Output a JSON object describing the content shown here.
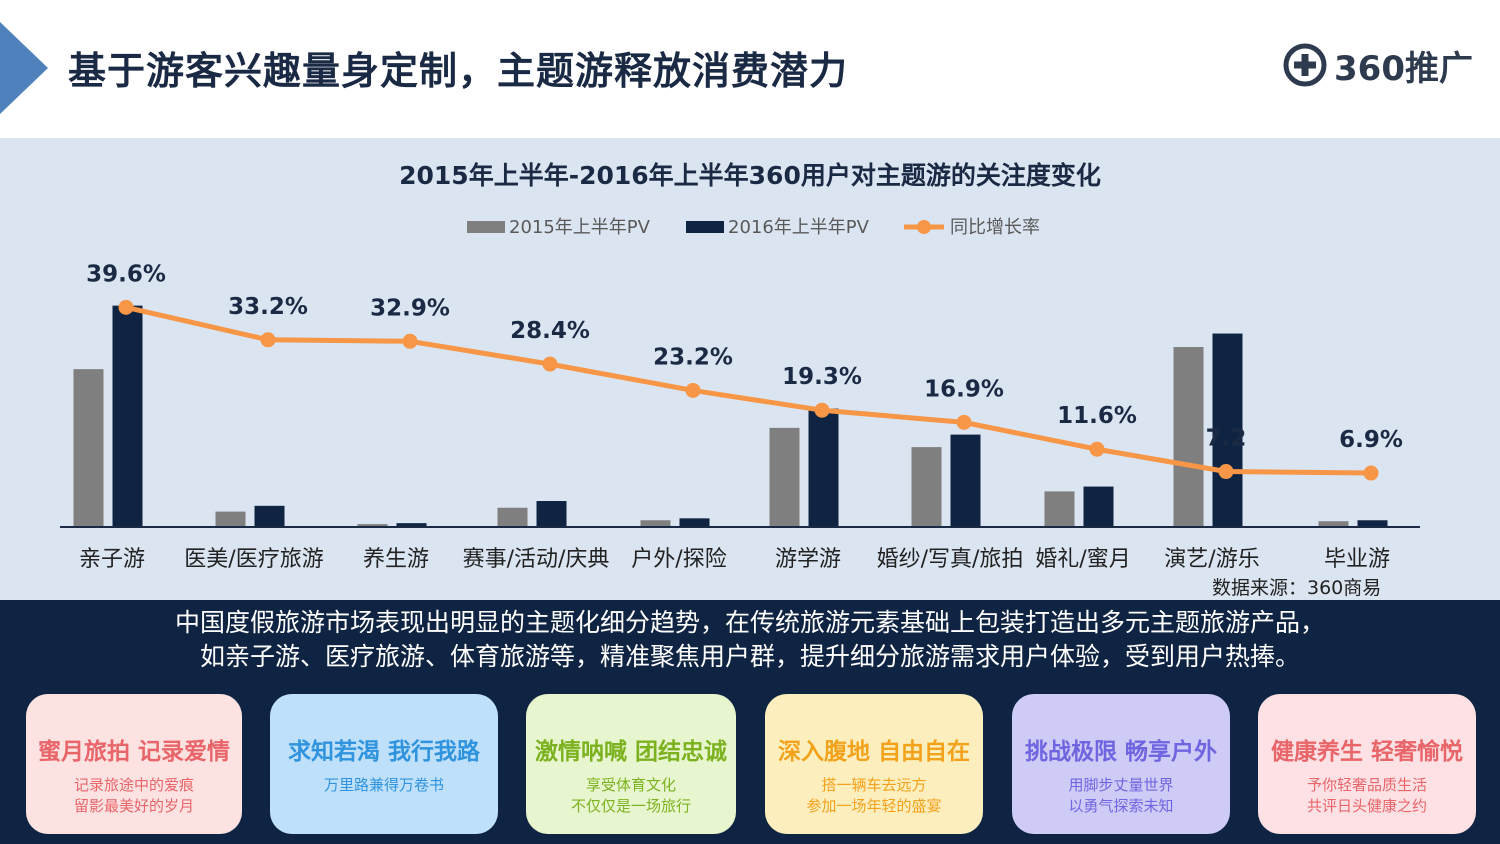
{
  "header": {
    "title": "基于游客兴趣量身定制，主题游释放消费潜力",
    "logo_text": "360推广"
  },
  "chart_data": {
    "type": "bar",
    "title": "2015年上半年-2016年上半年360用户对主题游的关注度变化",
    "categories": [
      "亲子游",
      "医美/医疗旅游",
      "养生游",
      "赛事/活动/庆典",
      "户外/探险",
      "游学游",
      "婚纱/写真/旅拍",
      "婚礼/蜜月",
      "演艺/游乐",
      "毕业游"
    ],
    "series": [
      {
        "name": "2015年上半年PV",
        "type": "bar",
        "color": "#7f7f7f",
        "values": [
          164,
          16,
          3,
          20,
          7,
          103,
          83,
          37,
          187,
          6
        ]
      },
      {
        "name": "2016年上半年PV",
        "type": "bar",
        "color": "#0f2442",
        "values": [
          230,
          22,
          4,
          27,
          9,
          123,
          96,
          42,
          201,
          7
        ]
      },
      {
        "name": "同比增长率",
        "type": "line",
        "color": "#f79646",
        "values": [
          39.6,
          33.2,
          32.9,
          28.4,
          23.2,
          19.3,
          16.9,
          11.6,
          7.2,
          6.9
        ]
      }
    ],
    "rate_labels": [
      "39.6%",
      "33.2%",
      "32.9%",
      "28.4%",
      "23.2%",
      "19.3%",
      "16.9%",
      "11.6%",
      "7.2",
      "6.9%"
    ],
    "rate_range": [
      0,
      45
    ],
    "ylim": [
      0,
      240
    ],
    "legend": "top-center",
    "grid": false
  },
  "source": "数据来源：360商易",
  "summary": {
    "line1": "中国度假旅游市场表现出明显的主题化细分趋势，在传统旅游元素基础上包装打造出多元主题旅游产品，",
    "line2": "如亲子游、医疗旅游、体育旅游等，精准聚焦用户群，提升细分旅游需求用户体验，受到用户热捧。"
  },
  "cards": [
    {
      "title": "蜜月旅拍 记录爱情",
      "line1": "记录旅途中的爱痕",
      "line2": "留影最美好的岁月",
      "bg": "#fde2e2",
      "color": "#e8656a"
    },
    {
      "title": "求知若渴 我行我路",
      "line1": "万里路兼得万卷书",
      "line2": "",
      "bg": "#bfe0fb",
      "color": "#2f93dd"
    },
    {
      "title": "激情呐喊 团结忠诚",
      "line1": "享受体育文化",
      "line2": "不仅仅是一场旅行",
      "bg": "#e8f6cf",
      "color": "#7cb21f"
    },
    {
      "title": "深入腹地 自由自在",
      "line1": "搭一辆车去远方",
      "line2": "参加一场年轻的盛宴",
      "bg": "#fdeebd",
      "color": "#f2a21b"
    },
    {
      "title": "挑战极限 畅享户外",
      "line1": "用脚步丈量世界",
      "line2": "以勇气探索未知",
      "bg": "#cfcbf7",
      "color": "#7065e0"
    },
    {
      "title": "健康养生 轻奢愉悦",
      "line1": "予你轻奢品质生活",
      "line2": "共评日头健康之约",
      "bg": "#fde1e4",
      "color": "#e8656a"
    }
  ]
}
